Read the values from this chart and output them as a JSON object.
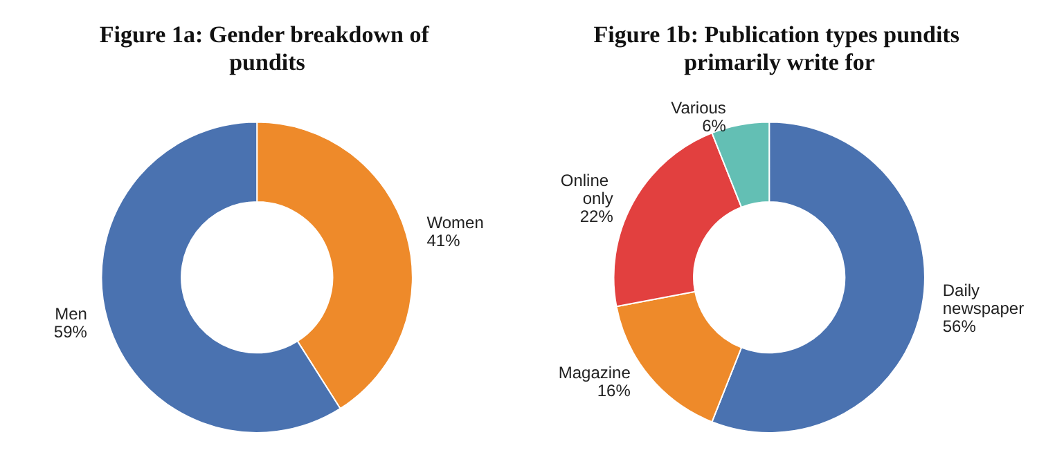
{
  "chart_data": [
    {
      "type": "donut",
      "title": "Figure 1a: Gender breakdown of pundits",
      "categories": [
        "Women",
        "Men"
      ],
      "values": [
        41,
        59
      ],
      "value_labels": [
        "41%",
        "59%"
      ],
      "colors": [
        "#ee8a2a",
        "#4a72b0"
      ]
    },
    {
      "type": "donut",
      "title": "Figure 1b: Publication types pundits primarily write for",
      "categories": [
        "Daily newspaper",
        "Magazine",
        "Online only",
        "Various"
      ],
      "values": [
        56,
        16,
        22,
        6
      ],
      "value_labels": [
        "56%",
        "16%",
        "22%",
        "6%"
      ],
      "colors": [
        "#4a72b0",
        "#ee8a2a",
        "#e2403f",
        "#63bfb4"
      ]
    }
  ]
}
